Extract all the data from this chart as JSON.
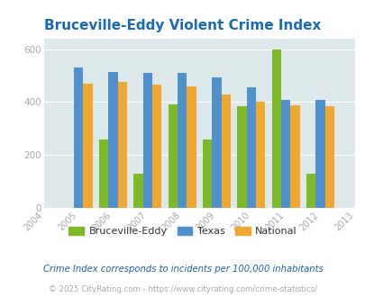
{
  "title": "Bruceville-Eddy Violent Crime Index",
  "years": [
    2004,
    2005,
    2006,
    2007,
    2008,
    2009,
    2010,
    2011,
    2012,
    2013
  ],
  "data_years": [
    2005,
    2006,
    2007,
    2008,
    2009,
    2010,
    2011,
    2012
  ],
  "bruceville": [
    0,
    260,
    130,
    390,
    260,
    385,
    598,
    130
  ],
  "texas": [
    530,
    515,
    510,
    510,
    495,
    455,
    408,
    408
  ],
  "national": [
    470,
    475,
    465,
    458,
    428,
    403,
    387,
    383
  ],
  "bruceville_color": "#7db928",
  "texas_color": "#4f90cd",
  "national_color": "#f0a830",
  "bg_color": "#dce8ea",
  "fig_bg_color": "#ffffff",
  "ylim": [
    0,
    640
  ],
  "yticks": [
    0,
    200,
    400,
    600
  ],
  "footnote1": "Crime Index corresponds to incidents per 100,000 inhabitants",
  "footnote2": "© 2025 CityRating.com - https://www.cityrating.com/crime-statistics/",
  "title_color": "#1a6ab0",
  "footnote1_color": "#2060a0",
  "footnote2_color": "#aaaaaa",
  "bar_width": 0.27
}
